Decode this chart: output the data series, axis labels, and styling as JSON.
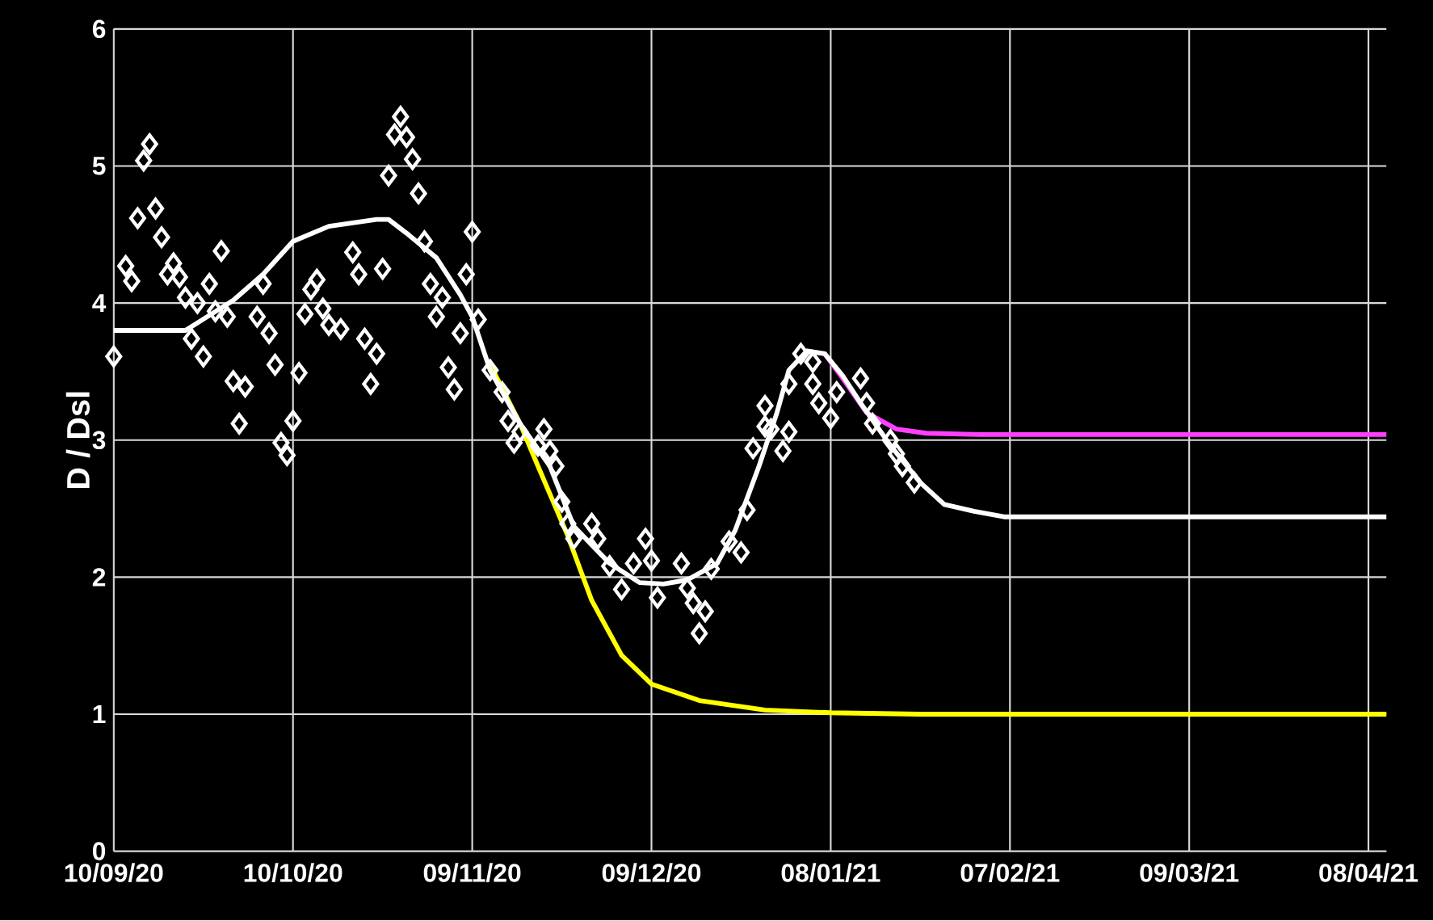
{
  "chart_data": {
    "type": "scatter",
    "ylabel": "D / Dsl",
    "xlim": [
      "2020-09-10",
      "2021-04-11"
    ],
    "ylim": [
      0,
      6
    ],
    "xticks": [
      {
        "value": "2020-09-10",
        "label": "10/09/20"
      },
      {
        "value": "2020-10-10",
        "label": "10/10/20"
      },
      {
        "value": "2020-11-09",
        "label": "09/11/20"
      },
      {
        "value": "2020-12-09",
        "label": "09/12/20"
      },
      {
        "value": "2021-01-08",
        "label": "08/01/21"
      },
      {
        "value": "2021-02-07",
        "label": "07/02/21"
      },
      {
        "value": "2021-03-09",
        "label": "09/03/21"
      },
      {
        "value": "2021-04-08",
        "label": "08/04/21"
      }
    ],
    "yticks": [
      0,
      1,
      2,
      3,
      4,
      5,
      6
    ],
    "grid": true,
    "series": [
      {
        "type": "line",
        "marker": "none",
        "color": "#ffff00",
        "x": [
          "2020-11-12",
          "2020-11-17",
          "2020-11-20",
          "2020-11-25",
          "2020-11-29",
          "2020-12-04",
          "2020-12-09",
          "2020-12-17",
          "2020-12-28",
          "2021-01-08",
          "2021-01-23",
          "2021-04-11"
        ],
        "values": [
          3.55,
          3.12,
          2.81,
          2.3,
          1.83,
          1.43,
          1.22,
          1.1,
          1.03,
          1.01,
          1.0,
          1.0
        ]
      },
      {
        "type": "line",
        "marker": "none",
        "color": "#ff40ff",
        "x": [
          "2021-01-04",
          "2021-01-07",
          "2021-01-10",
          "2021-01-14",
          "2021-01-19",
          "2021-01-24",
          "2021-02-02",
          "2021-04-11"
        ],
        "values": [
          3.65,
          3.63,
          3.45,
          3.2,
          3.08,
          3.05,
          3.04,
          3.04
        ]
      },
      {
        "type": "line",
        "marker": "none",
        "color": "#ffffff",
        "x": [
          "2020-09-10",
          "2020-09-22",
          "2020-09-30",
          "2020-10-05",
          "2020-10-10",
          "2020-10-16",
          "2020-10-24",
          "2020-10-26",
          "2020-10-29",
          "2020-11-03",
          "2020-11-07",
          "2020-11-09",
          "2020-11-12",
          "2020-11-17",
          "2020-11-22",
          "2020-11-26",
          "2020-12-02",
          "2020-12-07",
          "2020-12-11",
          "2020-12-15",
          "2020-12-20",
          "2020-12-23",
          "2020-12-27",
          "2020-12-30",
          "2021-01-01",
          "2021-01-04",
          "2021-01-07",
          "2021-01-10",
          "2021-01-13",
          "2021-01-18",
          "2021-01-23",
          "2021-01-27",
          "2021-02-01",
          "2021-02-06",
          "2021-04-11"
        ],
        "values": [
          3.8,
          3.8,
          4.02,
          4.21,
          4.45,
          4.56,
          4.61,
          4.61,
          4.51,
          4.33,
          4.06,
          3.9,
          3.51,
          3.12,
          2.81,
          2.37,
          2.1,
          1.96,
          1.95,
          1.98,
          2.1,
          2.34,
          2.81,
          3.2,
          3.51,
          3.65,
          3.63,
          3.47,
          3.27,
          2.96,
          2.69,
          2.53,
          2.48,
          2.44,
          2.44
        ]
      },
      {
        "marker": "diamond",
        "color": "#ffffff",
        "x": [
          "2020-09-10",
          "2020-09-16",
          "2020-09-15",
          "2020-09-14",
          "2020-09-17",
          "2020-09-12",
          "2020-09-13",
          "2020-09-18",
          "2020-09-20",
          "2020-09-19",
          "2020-09-21",
          "2020-09-28",
          "2020-09-26",
          "2020-09-22",
          "2020-09-24",
          "2020-09-23",
          "2020-09-25",
          "2020-09-27",
          "2020-09-29",
          "2020-09-30",
          "2020-10-02",
          "2020-10-01",
          "2020-10-05",
          "2020-10-04",
          "2020-10-06",
          "2020-10-07",
          "2020-10-11",
          "2020-10-10",
          "2020-10-08",
          "2020-10-09",
          "2020-10-14",
          "2020-10-13",
          "2020-10-12",
          "2020-10-15",
          "2020-10-18",
          "2020-10-16",
          "2020-10-20",
          "2020-10-21",
          "2020-10-25",
          "2020-10-22",
          "2020-10-24",
          "2020-10-23",
          "2020-10-26",
          "2020-10-28",
          "2020-10-27",
          "2020-10-29",
          "2020-10-30",
          "2020-10-31",
          "2020-11-01",
          "2020-11-02",
          "2020-11-04",
          "2020-11-03",
          "2020-11-07",
          "2020-11-05",
          "2020-11-06",
          "2020-11-08",
          "2020-11-09",
          "2020-11-10",
          "2020-11-12",
          "2020-11-14",
          "2020-11-15",
          "2020-11-16",
          "2020-11-17",
          "2020-11-21",
          "2020-11-20",
          "2020-11-22",
          "2020-11-23",
          "2020-11-24",
          "2020-11-25",
          "2020-11-26",
          "2020-11-29",
          "2020-11-30",
          "2020-12-02",
          "2020-12-04",
          "2020-12-06",
          "2020-12-08",
          "2020-12-09",
          "2020-12-10",
          "2020-12-14",
          "2020-12-15",
          "2020-12-16",
          "2020-12-18",
          "2020-12-17",
          "2020-12-19",
          "2020-12-22",
          "2020-12-24",
          "2020-12-25",
          "2020-12-26",
          "2020-12-28",
          "2020-12-28",
          "2020-12-29",
          "2020-12-31",
          "2021-01-01",
          "2021-01-01",
          "2021-01-03",
          "2021-01-05",
          "2021-01-05",
          "2021-01-06",
          "2021-01-08",
          "2021-01-09",
          "2021-01-13",
          "2021-01-14",
          "2021-01-15",
          "2021-01-18",
          "2021-01-19",
          "2021-01-20",
          "2021-01-22"
        ],
        "values": [
          3.61,
          5.16,
          5.04,
          4.62,
          4.69,
          4.27,
          4.16,
          4.48,
          4.29,
          4.21,
          4.19,
          4.38,
          4.14,
          4.04,
          4.0,
          3.74,
          3.61,
          3.94,
          3.9,
          3.43,
          3.39,
          3.12,
          4.14,
          3.9,
          3.78,
          3.55,
          3.49,
          3.14,
          2.98,
          2.89,
          4.17,
          4.1,
          3.92,
          3.96,
          3.81,
          3.84,
          4.37,
          4.21,
          4.25,
          3.74,
          3.63,
          3.41,
          4.93,
          5.36,
          5.23,
          5.21,
          5.05,
          4.8,
          4.45,
          4.14,
          4.04,
          3.9,
          3.78,
          3.53,
          3.37,
          4.21,
          4.52,
          3.88,
          3.51,
          3.35,
          3.14,
          2.98,
          3.06,
          3.08,
          2.96,
          2.92,
          2.81,
          2.55,
          2.39,
          2.28,
          2.39,
          2.28,
          2.08,
          1.91,
          2.1,
          2.28,
          2.12,
          1.85,
          2.1,
          1.92,
          1.81,
          1.75,
          1.59,
          2.06,
          2.26,
          2.18,
          2.49,
          2.94,
          3.1,
          3.25,
          3.08,
          2.92,
          3.06,
          3.41,
          3.63,
          3.57,
          3.41,
          3.27,
          3.16,
          3.35,
          3.45,
          3.27,
          3.12,
          3.0,
          2.9,
          2.81,
          2.69
        ]
      }
    ]
  }
}
